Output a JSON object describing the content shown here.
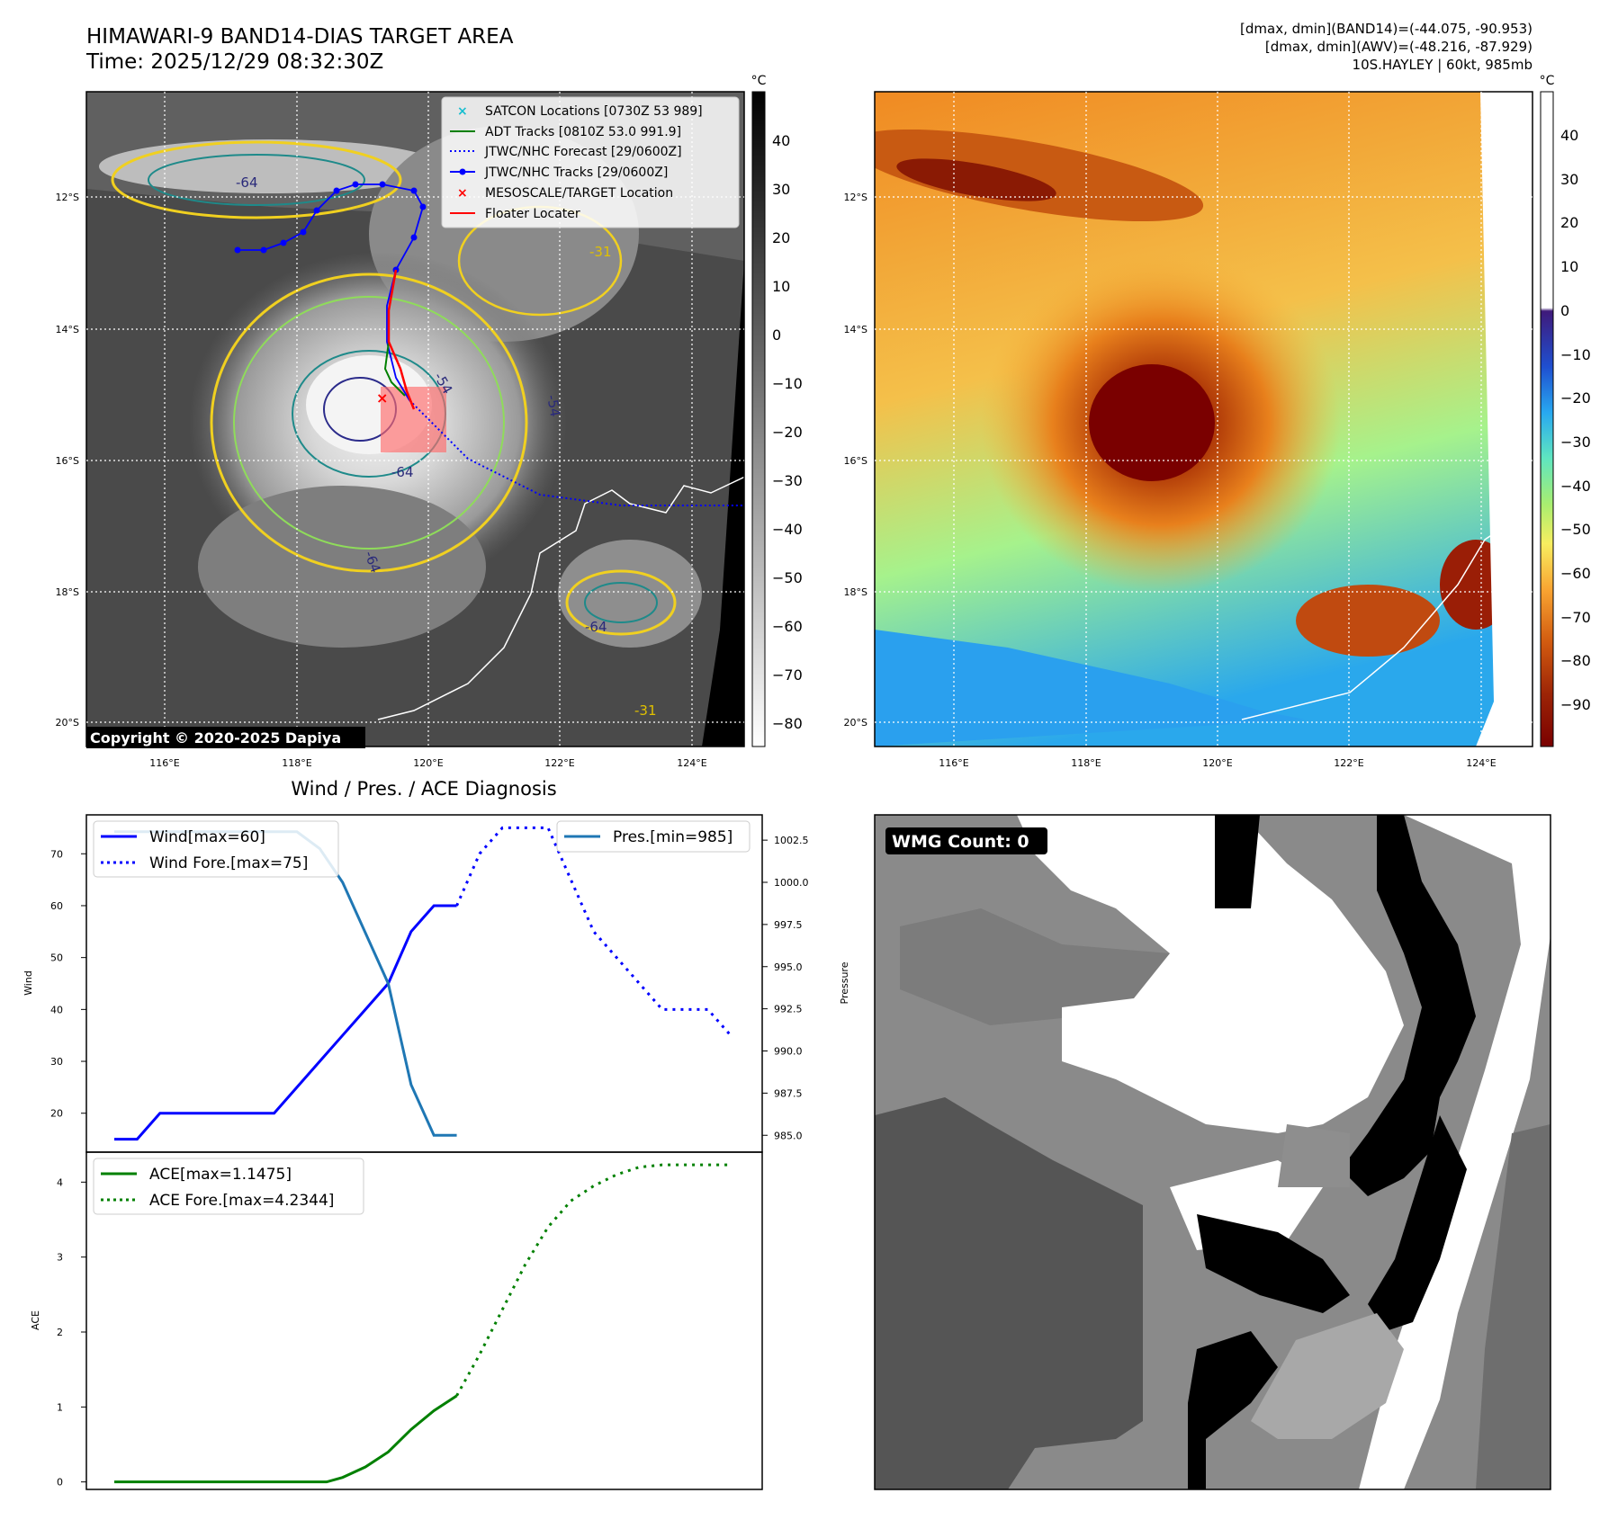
{
  "header": {
    "title": "HIMAWARI-9 BAND14-DIAS TARGET AREA",
    "time": "Time: 2025/12/29 08:32:30Z",
    "info_band14": "[dmax, dmin](BAND14)=(-44.075, -90.953)",
    "info_awv": "[dmax, dmin](AWV)=(-48.216, -87.929)",
    "info_storm": "10S.HAYLEY | 60kt, 985mb"
  },
  "maps": {
    "lat_labels": [
      "12°S",
      "14°S",
      "16°S",
      "18°S",
      "20°S"
    ],
    "lon_labels": [
      "116°E",
      "118°E",
      "120°E",
      "122°E",
      "124°E"
    ],
    "copyright": "Copyright © 2020-2025 Dapiya",
    "contour_labels": [
      "-64",
      "-54",
      "-31",
      "-64",
      "-54",
      "-64",
      "-31",
      "-64"
    ],
    "legend": [
      {
        "label": "SATCON Locations [0730Z 53 989]",
        "color": "#17becf",
        "marker": "x"
      },
      {
        "label": "ADT Tracks [0810Z 53.0 991.9]",
        "color": "#008000",
        "marker": "line"
      },
      {
        "label": "JTWC/NHC Forecast [29/0600Z]",
        "color": "#0000ff",
        "marker": "dotted"
      },
      {
        "label": "JTWC/NHC Tracks [29/0600Z]",
        "color": "#0000ff",
        "marker": "dot-line"
      },
      {
        "label": "MESOSCALE/TARGET Location",
        "color": "#ff0000",
        "marker": "x"
      },
      {
        "label": "Floater Locater",
        "color": "#ff0000",
        "marker": "line"
      }
    ],
    "cbar_unit": "°C",
    "cbar1_ticks": [
      "40",
      "30",
      "20",
      "10",
      "0",
      "−10",
      "−20",
      "−30",
      "−40",
      "−50",
      "−60",
      "−70",
      "−80"
    ],
    "cbar2_ticks": [
      "40",
      "30",
      "20",
      "10",
      "0",
      "−10",
      "−20",
      "−30",
      "−40",
      "−50",
      "−60",
      "−70",
      "−80",
      "−90"
    ]
  },
  "chart_data": [
    {
      "type": "line",
      "title": "Wind / Pres. / ACE Diagnosis",
      "ylabel": "Wind",
      "ylabel2": "Pressure",
      "ylim": [
        12.5,
        77.5
      ],
      "ylim2": [
        984,
        1004
      ],
      "yticks": [
        "70",
        "60",
        "50",
        "40",
        "30",
        "20"
      ],
      "yticks2": [
        "1002.5",
        "1000.0",
        "997.5",
        "995.0",
        "992.5",
        "990.0",
        "987.5",
        "985.0"
      ],
      "legend_left": [
        "Wind[max=60]",
        "Wind Fore.[max=75]"
      ],
      "legend_right": [
        "Pres.[min=985]"
      ],
      "series": [
        {
          "name": "Wind[max=60]",
          "color": "#0000ff",
          "x": [
            0,
            1,
            2,
            3,
            4,
            5,
            6,
            7,
            8,
            9,
            10,
            11,
            12,
            13,
            14,
            15
          ],
          "values": [
            15,
            15,
            20,
            20,
            20,
            20,
            20,
            20,
            25,
            30,
            35,
            40,
            45,
            55,
            60,
            60
          ]
        },
        {
          "name": "Wind Fore.[max=75]",
          "color": "#0000ff",
          "dashed": true,
          "x": [
            15,
            16,
            17,
            18,
            19,
            20,
            21,
            22,
            23,
            24,
            25,
            26,
            27
          ],
          "values": [
            60,
            70,
            75,
            75,
            75,
            65,
            55,
            50,
            45,
            40,
            40,
            40,
            35
          ]
        },
        {
          "name": "Pres.[min=985]",
          "color": "#1f77b4",
          "axis": 2,
          "x": [
            0,
            1,
            2,
            3,
            4,
            5,
            6,
            7,
            8,
            9,
            10,
            11,
            12,
            13,
            14,
            15
          ],
          "values": [
            1003,
            1003,
            1003,
            1003,
            1003,
            1003,
            1003,
            1003,
            1003,
            1002,
            1000,
            997,
            994,
            988,
            985,
            985
          ]
        }
      ]
    },
    {
      "type": "line",
      "ylabel": "ACE",
      "ylim": [
        -0.1,
        4.4
      ],
      "yticks": [
        "4",
        "3",
        "2",
        "1",
        "0"
      ],
      "legend": [
        "ACE[max=1.1475]",
        "ACE Fore.[max=4.2344]"
      ],
      "series": [
        {
          "name": "ACE[max=1.1475]",
          "color": "#008000",
          "x": [
            0,
            5,
            9.3,
            10,
            11,
            12,
            13,
            14,
            15
          ],
          "values": [
            0,
            0,
            0,
            0.06,
            0.2,
            0.4,
            0.7,
            0.95,
            1.15
          ]
        },
        {
          "name": "ACE Fore.[max=4.2344]",
          "color": "#008000",
          "dashed": true,
          "x": [
            15,
            16,
            17,
            18,
            19,
            20,
            21,
            22,
            23,
            24,
            25,
            26,
            27
          ],
          "values": [
            1.15,
            1.7,
            2.3,
            2.9,
            3.4,
            3.75,
            3.95,
            4.1,
            4.2,
            4.23,
            4.23,
            4.23,
            4.23
          ]
        }
      ]
    }
  ],
  "wmg": {
    "label": "WMG Count: 0"
  }
}
